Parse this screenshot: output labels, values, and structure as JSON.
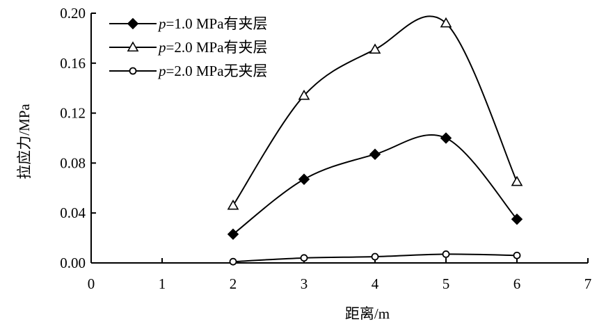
{
  "chart_data": {
    "type": "line",
    "title": "",
    "xlabel": "距离/m",
    "ylabel": "拉应力/MPa",
    "xlim": [
      0,
      7
    ],
    "ylim": [
      0,
      0.2
    ],
    "xticks": [
      0,
      1,
      2,
      3,
      4,
      5,
      6,
      7
    ],
    "yticks": [
      0.0,
      0.04,
      0.08,
      0.12,
      0.16,
      0.2
    ],
    "ytick_labels": [
      "0.00",
      "0.04",
      "0.08",
      "0.12",
      "0.16",
      "0.20"
    ],
    "grid": false,
    "smooth": true,
    "legend_position": "top-left",
    "series": [
      {
        "name": "p=1.0 MPa有夹层",
        "name_italic": "p",
        "name_rest": "=1.0 MPa有夹层",
        "marker": "filled-diamond",
        "x": [
          2,
          3,
          4,
          5,
          6
        ],
        "y": [
          0.023,
          0.067,
          0.087,
          0.1,
          0.035
        ]
      },
      {
        "name": "p=2.0 MPa有夹层",
        "name_italic": "p",
        "name_rest": "=2.0 MPa有夹层",
        "marker": "open-triangle",
        "x": [
          2,
          3,
          4,
          5,
          6
        ],
        "y": [
          0.046,
          0.134,
          0.171,
          0.192,
          0.065
        ]
      },
      {
        "name": "p=2.0 MPa无夹层",
        "name_italic": "p",
        "name_rest": "=2.0 MPa无夹层",
        "marker": "open-circle",
        "x": [
          2,
          3,
          4,
          5,
          6
        ],
        "y": [
          0.001,
          0.004,
          0.005,
          0.007,
          0.006
        ]
      }
    ]
  }
}
